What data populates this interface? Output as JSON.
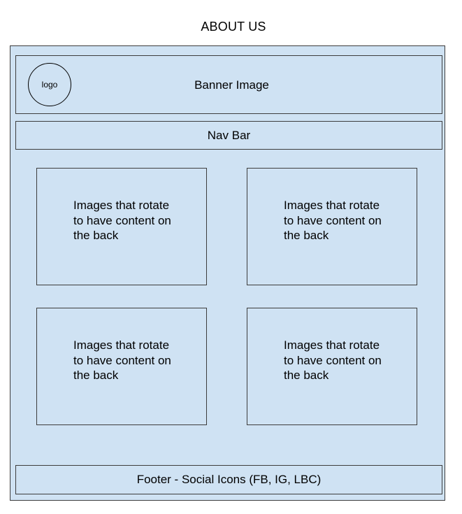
{
  "page": {
    "title": "ABOUT US"
  },
  "banner": {
    "logo_label": "logo",
    "label": "Banner Image"
  },
  "nav": {
    "label": "Nav Bar"
  },
  "cards": [
    {
      "text": "Images that rotate to have content on the back"
    },
    {
      "text": "Images that rotate to have content on the back"
    },
    {
      "text": "Images that rotate to have content on the back"
    },
    {
      "text": "Images that rotate to have content on the back"
    }
  ],
  "footer": {
    "label": "Footer - Social Icons (FB, IG, LBC)"
  },
  "colors": {
    "frame_fill": "#cfe2f3",
    "border": "#3d3d3d"
  }
}
